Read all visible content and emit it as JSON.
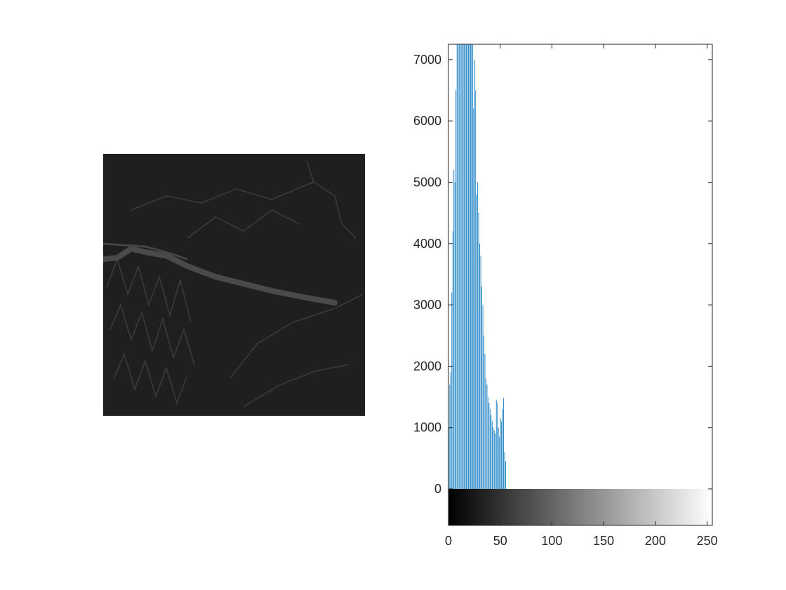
{
  "figure": {
    "image_panel": {
      "description_icon": "grayscale-terrain-edge-image",
      "colors": {
        "background": "#1f1f1f",
        "ridge": "#444444",
        "river": "#4a4a4a"
      }
    }
  },
  "chart_data": {
    "type": "bar",
    "title": "",
    "xlabel": "",
    "ylabel": "",
    "xlim": [
      0,
      255
    ],
    "ylim": [
      -600,
      7250
    ],
    "grid": false,
    "bar_color": "#0072BD",
    "colorbar": {
      "from": "#000000",
      "to": "#ffffff",
      "range": [
        0,
        255
      ]
    },
    "x_ticks": [
      "0",
      "50",
      "100",
      "150",
      "200",
      "250"
    ],
    "x_tick_values": [
      0,
      50,
      100,
      150,
      200,
      250
    ],
    "y_ticks": [
      "0",
      "1000",
      "2000",
      "3000",
      "4000",
      "5000",
      "6000",
      "7000"
    ],
    "y_tick_values": [
      0,
      1000,
      2000,
      3000,
      4000,
      5000,
      6000,
      7000
    ],
    "x": [
      0,
      1,
      2,
      3,
      4,
      5,
      6,
      7,
      8,
      9,
      10,
      11,
      12,
      13,
      14,
      15,
      16,
      17,
      18,
      19,
      20,
      21,
      22,
      23,
      24,
      25,
      26,
      27,
      28,
      29,
      30,
      31,
      32,
      33,
      34,
      35,
      36,
      37,
      38,
      39,
      40,
      41,
      42,
      43,
      44,
      45,
      46,
      47,
      48,
      49,
      50,
      51,
      52,
      53,
      54,
      55,
      56
    ],
    "values": [
      1000,
      1700,
      1900,
      3200,
      4200,
      5200,
      5000,
      6500,
      7300,
      7300,
      7300,
      7300,
      7300,
      7300,
      7300,
      7300,
      7300,
      7300,
      7300,
      7300,
      7300,
      7300,
      7300,
      7300,
      6200,
      7000,
      6500,
      4800,
      5000,
      4500,
      4000,
      3800,
      3300,
      3000,
      2500,
      2200,
      1800,
      1700,
      1500,
      1400,
      1300,
      1200,
      1100,
      1000,
      950,
      900,
      1450,
      1400,
      1000,
      850,
      1150,
      1100,
      1300,
      1480,
      600,
      450,
      0
    ]
  }
}
